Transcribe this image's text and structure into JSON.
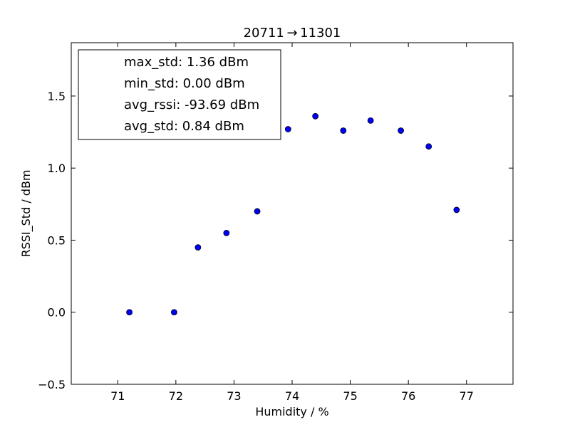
{
  "chart_data": {
    "type": "scatter",
    "title": "20711 → 11301",
    "xlabel": "Humidity / %",
    "ylabel": "RSSI_Std / dBm",
    "xlim": [
      70.2,
      77.8
    ],
    "ylim": [
      -0.5,
      1.87
    ],
    "xticks": [
      71,
      72,
      73,
      74,
      75,
      76,
      77
    ],
    "yticks": [
      -0.5,
      0.0,
      0.5,
      1.0,
      1.5
    ],
    "ytick_labels": [
      "−0.5",
      "0.0",
      "0.5",
      "1.0",
      "1.5"
    ],
    "grid": false,
    "legend_position": "top-left",
    "legend_entries": [
      "max_std: 1.36 dBm",
      "min_std: 0.00 dBm",
      "avg_rssi: -93.69 dBm",
      "avg_std: 0.84 dBm"
    ],
    "marker_color": "#0000ff",
    "series": [
      {
        "x": [
          71.2,
          71.97,
          72.38,
          72.87,
          73.4,
          73.93,
          74.4,
          74.88,
          75.35,
          75.87,
          76.35,
          76.83
        ],
        "y": [
          0.0,
          0.0,
          0.45,
          0.55,
          0.7,
          1.27,
          1.36,
          1.26,
          1.33,
          1.26,
          1.15,
          0.71
        ]
      }
    ]
  }
}
